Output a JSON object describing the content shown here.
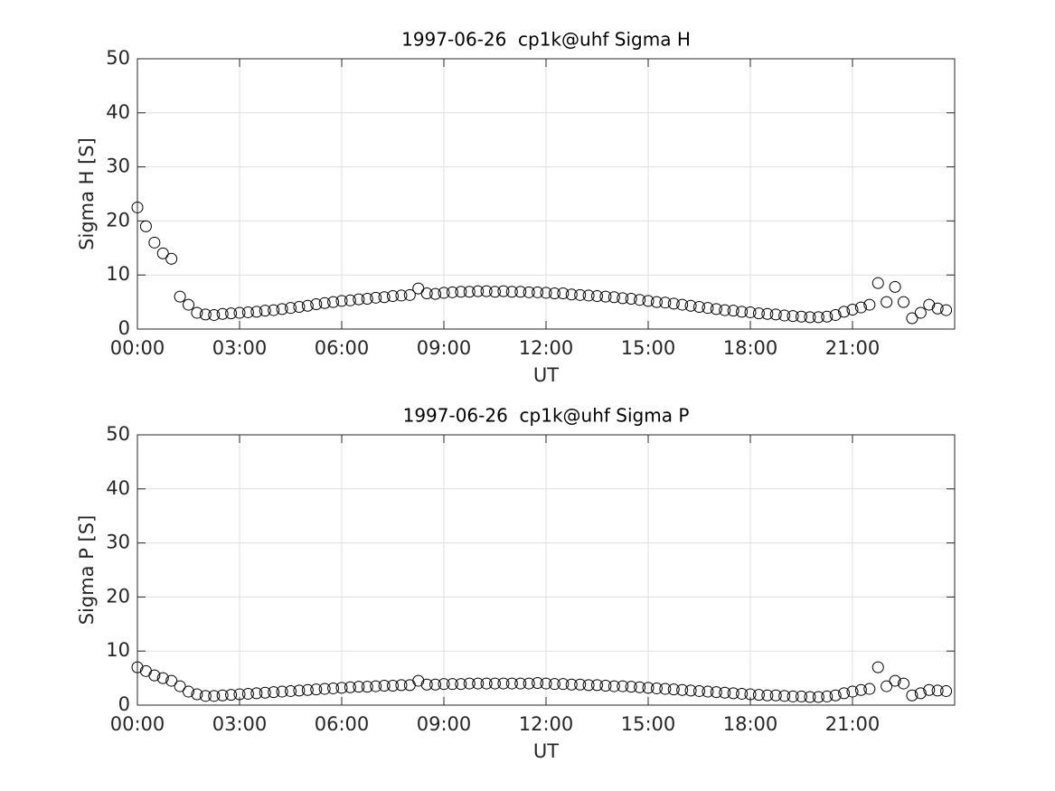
{
  "chart_data": [
    {
      "type": "scatter",
      "title": "1997-06-26  cp1k@uhf Sigma H",
      "xlabel": "UT",
      "ylabel": "Sigma H [S]",
      "xlim": [
        0,
        24
      ],
      "xticks": [
        {
          "value": 0,
          "label": "00:00"
        },
        {
          "value": 3,
          "label": "03:00"
        },
        {
          "value": 6,
          "label": "06:00"
        },
        {
          "value": 9,
          "label": "09:00"
        },
        {
          "value": 12,
          "label": "12:00"
        },
        {
          "value": 15,
          "label": "15:00"
        },
        {
          "value": 18,
          "label": "18:00"
        },
        {
          "value": 21,
          "label": "21:00"
        }
      ],
      "ylim": [
        0,
        50
      ],
      "yticks": [
        0,
        10,
        20,
        30,
        40,
        50
      ],
      "grid": true,
      "color": "#000000",
      "marker": "circle",
      "x": [
        0,
        0.25,
        0.5,
        0.75,
        1,
        1.25,
        1.5,
        1.75,
        2,
        2.25,
        2.5,
        2.75,
        3,
        3.25,
        3.5,
        3.75,
        4,
        4.25,
        4.5,
        4.75,
        5,
        5.25,
        5.5,
        5.75,
        6,
        6.25,
        6.5,
        6.75,
        7,
        7.25,
        7.5,
        7.75,
        8,
        8.25,
        8.5,
        8.75,
        9,
        9.25,
        9.5,
        9.75,
        10,
        10.25,
        10.5,
        10.75,
        11,
        11.25,
        11.5,
        11.75,
        12,
        12.25,
        12.5,
        12.75,
        13,
        13.25,
        13.5,
        13.75,
        14,
        14.25,
        14.5,
        14.75,
        15,
        15.25,
        15.5,
        15.75,
        16,
        16.25,
        16.5,
        16.75,
        17,
        17.25,
        17.5,
        17.75,
        18,
        18.25,
        18.5,
        18.75,
        19,
        19.25,
        19.5,
        19.75,
        20,
        20.25,
        20.5,
        20.75,
        21,
        21.25,
        21.5,
        21.75,
        22,
        22.25,
        22.5,
        22.75,
        23,
        23.25,
        23.5,
        23.75
      ],
      "values": [
        22.5,
        19,
        16,
        14,
        13,
        6,
        4.5,
        3,
        2.7,
        2.6,
        2.8,
        2.9,
        3,
        3.1,
        3.2,
        3.4,
        3.5,
        3.7,
        3.9,
        4.1,
        4.3,
        4.6,
        4.8,
        5,
        5.2,
        5.3,
        5.5,
        5.6,
        5.8,
        5.9,
        6.1,
        6.2,
        6.3,
        7.5,
        6.6,
        6.5,
        6.7,
        6.8,
        6.9,
        6.9,
        7,
        7,
        6.9,
        7,
        6.9,
        6.9,
        6.8,
        6.8,
        6.7,
        6.6,
        6.6,
        6.4,
        6.3,
        6.2,
        6.1,
        6,
        5.9,
        5.7,
        5.6,
        5.4,
        5.2,
        5,
        4.9,
        4.7,
        4.5,
        4.3,
        4.1,
        3.9,
        3.7,
        3.5,
        3.4,
        3.2,
        3.1,
        2.9,
        2.8,
        2.7,
        2.5,
        2.4,
        2.3,
        2.2,
        2.2,
        2.3,
        2.6,
        3.2,
        3.6,
        4,
        4.5,
        8.5,
        5,
        7.8,
        5,
        2,
        3,
        4.5,
        3.8,
        3.5
      ]
    },
    {
      "type": "scatter",
      "title": "1997-06-26  cp1k@uhf Sigma P",
      "xlabel": "UT",
      "ylabel": "Sigma P [S]",
      "xlim": [
        0,
        24
      ],
      "xticks": [
        {
          "value": 0,
          "label": "00:00"
        },
        {
          "value": 3,
          "label": "03:00"
        },
        {
          "value": 6,
          "label": "06:00"
        },
        {
          "value": 9,
          "label": "09:00"
        },
        {
          "value": 12,
          "label": "12:00"
        },
        {
          "value": 15,
          "label": "15:00"
        },
        {
          "value": 18,
          "label": "18:00"
        },
        {
          "value": 21,
          "label": "21:00"
        }
      ],
      "ylim": [
        0,
        50
      ],
      "yticks": [
        0,
        10,
        20,
        30,
        40,
        50
      ],
      "grid": true,
      "color": "#000000",
      "marker": "circle",
      "x": [
        0,
        0.25,
        0.5,
        0.75,
        1,
        1.25,
        1.5,
        1.75,
        2,
        2.25,
        2.5,
        2.75,
        3,
        3.25,
        3.5,
        3.75,
        4,
        4.25,
        4.5,
        4.75,
        5,
        5.25,
        5.5,
        5.75,
        6,
        6.25,
        6.5,
        6.75,
        7,
        7.25,
        7.5,
        7.75,
        8,
        8.25,
        8.5,
        8.75,
        9,
        9.25,
        9.5,
        9.75,
        10,
        10.25,
        10.5,
        10.75,
        11,
        11.25,
        11.5,
        11.75,
        12,
        12.25,
        12.5,
        12.75,
        13,
        13.25,
        13.5,
        13.75,
        14,
        14.25,
        14.5,
        14.75,
        15,
        15.25,
        15.5,
        15.75,
        16,
        16.25,
        16.5,
        16.75,
        17,
        17.25,
        17.5,
        17.75,
        18,
        18.25,
        18.5,
        18.75,
        19,
        19.25,
        19.5,
        19.75,
        20,
        20.25,
        20.5,
        20.75,
        21,
        21.25,
        21.5,
        21.75,
        22,
        22.25,
        22.5,
        22.75,
        23,
        23.25,
        23.5,
        23.75
      ],
      "values": [
        7,
        6.3,
        5.5,
        5,
        4.5,
        3.5,
        2.5,
        2,
        1.7,
        1.7,
        1.8,
        1.9,
        2,
        2.1,
        2.2,
        2.3,
        2.4,
        2.5,
        2.6,
        2.7,
        2.8,
        2.9,
        3,
        3.1,
        3.2,
        3.3,
        3.4,
        3.4,
        3.5,
        3.6,
        3.6,
        3.7,
        3.7,
        4.5,
        3.8,
        3.8,
        3.9,
        3.9,
        3.9,
        4,
        4,
        4,
        4,
        4,
        4,
        4,
        4,
        4.1,
        4,
        3.9,
        3.9,
        3.8,
        3.8,
        3.7,
        3.7,
        3.6,
        3.5,
        3.5,
        3.4,
        3.3,
        3.2,
        3.1,
        3,
        2.9,
        2.8,
        2.7,
        2.6,
        2.5,
        2.4,
        2.3,
        2.2,
        2.1,
        2,
        1.9,
        1.8,
        1.8,
        1.7,
        1.6,
        1.6,
        1.5,
        1.5,
        1.6,
        1.8,
        2.2,
        2.5,
        2.8,
        3,
        7,
        3.5,
        4.5,
        4,
        1.8,
        2.2,
        2.8,
        2.7,
        2.6
      ]
    }
  ]
}
